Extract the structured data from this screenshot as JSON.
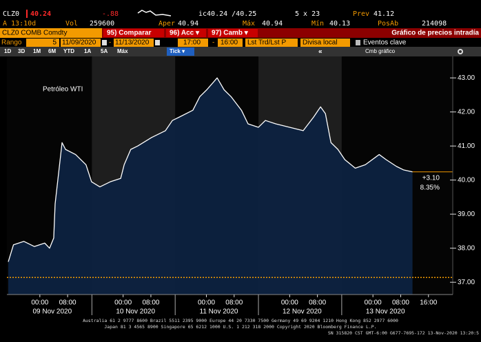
{
  "header": {
    "ticker": "CLZ0",
    "last": "40.24",
    "change": "-.88",
    "bid_ask": "ic40.24 /40.25",
    "size": "5 x 23",
    "prev_label": "Prev",
    "prev": "41.12",
    "time": "A 13:10d",
    "vol_label": "Vol",
    "vol": "259600",
    "open_label": "Aper",
    "open": "40.94",
    "high_label": "Máx",
    "high": "40.94",
    "low_label": "Mín",
    "low": "40.13",
    "oi_label": "PosAb",
    "oi": "214098"
  },
  "toolbar": {
    "security": "CLZ0 COMB Comdty",
    "buttons": [
      "95) Comparar",
      "96) Acc ▾",
      "97) Camb ▾"
    ],
    "screen_title": "Gráfico de precios intradía"
  },
  "range_bar": {
    "label": "Rango",
    "period": "5",
    "start_date": "11/09/2020",
    "date_sep": "-",
    "end_date": "11/13/2020",
    "start_time": "17:00",
    "time_sep": "-",
    "end_time": "16:00",
    "price_type": "Lst Trd/Lst P",
    "currency": "Divisa local",
    "events": "Eventos clave"
  },
  "period_bar": {
    "buttons": [
      "1D",
      "3D",
      "1M",
      "6M",
      "YTD",
      "1A",
      "5A",
      "Máx"
    ],
    "tick": "Tick ▾",
    "collapse": "«",
    "chart_menu": "Cmb gráfico"
  },
  "chart_data": {
    "type": "line",
    "title": "Petróleo WTI",
    "x": [
      -9.1,
      -7.6,
      -4.6,
      -1.6,
      1.4,
      2.8,
      4.0,
      4.4,
      6.4,
      7.4,
      10.3,
      13.3,
      14.9,
      17.3,
      20.3,
      23.3,
      24.3,
      26.2,
      28.2,
      32.2,
      36.2,
      38.2,
      40.2,
      44.1,
      46.1,
      48.1,
      51.1,
      53.1,
      55.1,
      58.1,
      60.0,
      63.0,
      65.0,
      68.0,
      72.0,
      75.9,
      78.9,
      80.9,
      82.3,
      83.9,
      85.9,
      87.9,
      90.9,
      93.8,
      97.8,
      99.8,
      102.8,
      104.8,
      107.4
    ],
    "values": [
      37.6,
      38.1,
      38.2,
      38.05,
      38.15,
      38.0,
      38.3,
      39.3,
      41.1,
      40.9,
      40.75,
      40.45,
      39.95,
      39.8,
      39.95,
      40.05,
      40.45,
      40.9,
      41.0,
      41.25,
      41.45,
      41.75,
      41.85,
      42.05,
      42.45,
      42.65,
      43.0,
      42.65,
      42.45,
      42.05,
      41.65,
      41.55,
      41.75,
      41.65,
      41.55,
      41.45,
      41.85,
      42.15,
      41.95,
      41.1,
      40.9,
      40.6,
      40.35,
      40.45,
      40.75,
      40.6,
      40.4,
      40.3,
      40.24
    ],
    "color": "#ffffff",
    "area_color": "#0d2240",
    "xlim": [
      -9.5,
      119
    ],
    "ylim": [
      36.64,
      43.63
    ],
    "yticks": [
      {
        "value": 37,
        "label": "37.00"
      },
      {
        "value": 38,
        "label": "38.00"
      },
      {
        "value": 39,
        "label": "39.00"
      },
      {
        "value": 40,
        "label": "40.00"
      },
      {
        "value": 41,
        "label": "41.00"
      },
      {
        "value": 42,
        "label": "42.00"
      },
      {
        "value": 43,
        "label": "43.00"
      }
    ],
    "xticks": [
      {
        "value": 0,
        "label": "00:00"
      },
      {
        "value": 8,
        "label": "08:00"
      },
      {
        "value": 24,
        "label": "00:00"
      },
      {
        "value": 32,
        "label": "08:00"
      },
      {
        "value": 48,
        "label": "00:00"
      },
      {
        "value": 56,
        "label": "08:00"
      },
      {
        "value": 72,
        "label": "00:00"
      },
      {
        "value": 80,
        "label": "08:00"
      },
      {
        "value": 96,
        "label": "00:00"
      },
      {
        "value": 104,
        "label": "08:00"
      },
      {
        "value": 112,
        "label": "16:00"
      }
    ],
    "date_labels": [
      {
        "value": 0,
        "label": "09 Nov 2020"
      },
      {
        "value": 24,
        "label": "10 Nov 2020"
      },
      {
        "value": 48,
        "label": "11 Nov 2020"
      },
      {
        "value": 72,
        "label": "12 Nov 2020"
      },
      {
        "value": 96,
        "label": "13 Nov 2020"
      }
    ],
    "shaded_ranges": [
      [
        15,
        39
      ],
      [
        63,
        87
      ]
    ],
    "reference_line": 37.14,
    "change": {
      "value": 3.1,
      "label": "+3.10"
    },
    "change_pct": {
      "value": 8.35,
      "label": "8.35%"
    },
    "accent_color": "#f39a00"
  },
  "footer": [
    "Australia 61 2 9777 8600 Brazil 5511 2395 9000 Europe 44 20 7330 7500 Germany 49 69 9204 1210 Hong Kong 852 2977 6000",
    "Japan 81 3 4565 8900       Singapore 65 6212 1000       U.S. 1 212 318 2000        Copyright 2020 Bloomberg Finance L.P.",
    "SN 315820 CST  GMT-6:00 G677-7695-172 13-Nov-2020 13:20:5"
  ]
}
